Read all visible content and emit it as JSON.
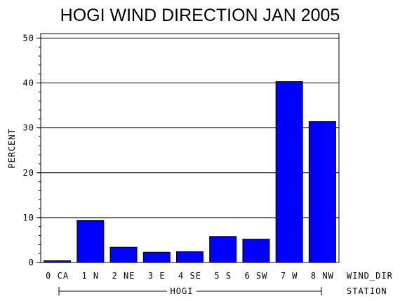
{
  "chart_data": {
    "type": "bar",
    "title": "HOGI WIND DIRECTION JAN 2005",
    "ylabel": "PERCENT",
    "xlabel": "WIND_DIR",
    "group_axis_label": "STATION",
    "group_label": "HOGI",
    "categories": [
      "0 CA",
      "1 N",
      "2 NE",
      "3 E",
      "4 SE",
      "5 S",
      "6 SW",
      "7 W",
      "8 NW"
    ],
    "values": [
      0.4,
      9.4,
      3.4,
      2.3,
      2.4,
      5.8,
      5.2,
      40.3,
      31.4
    ],
    "ylim": [
      0,
      51
    ],
    "yticks": [
      0,
      10,
      20,
      30,
      40,
      50
    ],
    "grid": true,
    "bar_color": "#0000ff"
  }
}
